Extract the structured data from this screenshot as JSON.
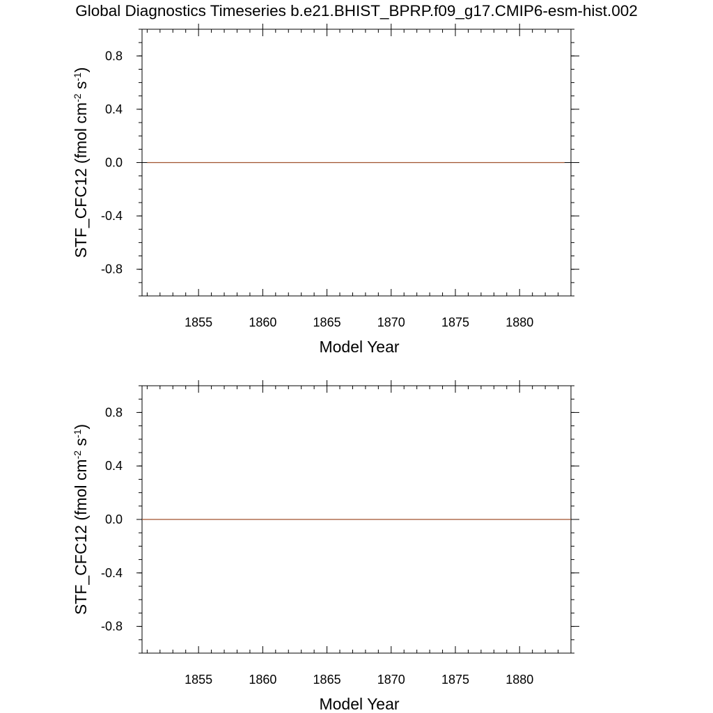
{
  "title": "Global Diagnostics Timeseries b.e21.BHIST_BPRP.f09_g17.CMIP6-esm-hist.002",
  "colors": {
    "series": "#a0522d",
    "axis": "#000000",
    "zero_line": "#000000"
  },
  "chart_data": [
    {
      "type": "line",
      "title": "Global Diagnostics Timeseries b.e21.BHIST_BPRP.f09_g17.CMIP6-esm-hist.002",
      "xlabel": "Model Year",
      "ylabel": {
        "text": "STF_CFC12 (fmol cm",
        "sup1": "-2",
        "mid": " s",
        "sup2": "-1",
        "end": ")"
      },
      "xlim": [
        1850.6,
        1884.0
      ],
      "ylim": [
        -1.0,
        1.0
      ],
      "x_major_ticks": [
        1855,
        1860,
        1865,
        1870,
        1875,
        1880
      ],
      "x_tick_labels": [
        "1855",
        "1860",
        "1865",
        "1870",
        "1875",
        "1880"
      ],
      "y_major_ticks": [
        -0.8,
        -0.4,
        0.0,
        0.4,
        0.8
      ],
      "y_tick_labels": [
        "-0.8",
        "-0.4",
        "0.0",
        "0.4",
        "0.8"
      ],
      "grid": false,
      "zero_reference_line": true,
      "series": [
        {
          "x": [
            1851.0,
            1883.5
          ],
          "y": [
            0.0,
            0.0
          ]
        }
      ]
    },
    {
      "type": "line",
      "xlabel": "Model Year",
      "ylabel": {
        "text": "STF_CFC12 (fmol cm",
        "sup1": "-2",
        "mid": " s",
        "sup2": "-1",
        "end": ")"
      },
      "xlim": [
        1850.6,
        1884.0
      ],
      "ylim": [
        -1.0,
        1.0
      ],
      "x_major_ticks": [
        1855,
        1860,
        1865,
        1870,
        1875,
        1880
      ],
      "x_tick_labels": [
        "1855",
        "1860",
        "1865",
        "1870",
        "1875",
        "1880"
      ],
      "y_major_ticks": [
        -0.8,
        -0.4,
        0.0,
        0.4,
        0.8
      ],
      "y_tick_labels": [
        "-0.8",
        "-0.4",
        "0.0",
        "0.4",
        "0.8"
      ],
      "grid": false,
      "zero_reference_line": true,
      "series": [
        {
          "x": [
            1850.6,
            1884.0
          ],
          "y": [
            0.0,
            0.0
          ]
        }
      ]
    }
  ]
}
